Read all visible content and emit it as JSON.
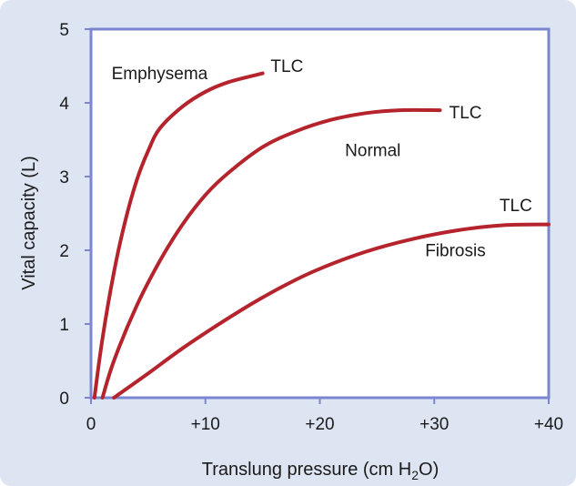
{
  "chart_data": {
    "type": "line",
    "xlabel_pre": "Translung pressure (cm H",
    "xlabel_sub": "2",
    "xlabel_post": "O)",
    "ylabel": "Vital capacity (L)",
    "xlim": [
      0,
      40
    ],
    "ylim": [
      0,
      5
    ],
    "x_ticks": [
      0,
      10,
      20,
      30,
      40
    ],
    "x_tick_labels": [
      "0",
      "+10",
      "+20",
      "+30",
      "+40"
    ],
    "y_ticks": [
      0,
      1,
      2,
      3,
      4,
      5
    ],
    "y_tick_labels": [
      "0",
      "1",
      "2",
      "3",
      "4",
      "5"
    ],
    "grid": false,
    "series": [
      {
        "name": "Emphysema",
        "end_label": "TLC",
        "points": [
          [
            0.3,
            0
          ],
          [
            1,
            0.8
          ],
          [
            2,
            1.7
          ],
          [
            3,
            2.4
          ],
          [
            4,
            2.95
          ],
          [
            5,
            3.35
          ],
          [
            6,
            3.65
          ],
          [
            8,
            3.95
          ],
          [
            10,
            4.15
          ],
          [
            12,
            4.28
          ],
          [
            15,
            4.4
          ]
        ]
      },
      {
        "name": "Normal",
        "end_label": "TLC",
        "points": [
          [
            1,
            0
          ],
          [
            2,
            0.5
          ],
          [
            4,
            1.25
          ],
          [
            6,
            1.85
          ],
          [
            8,
            2.35
          ],
          [
            10,
            2.75
          ],
          [
            12,
            3.05
          ],
          [
            15,
            3.4
          ],
          [
            18,
            3.62
          ],
          [
            21,
            3.77
          ],
          [
            24,
            3.86
          ],
          [
            27,
            3.9
          ],
          [
            30.5,
            3.9
          ]
        ]
      },
      {
        "name": "Fibrosis",
        "end_label": "TLC",
        "points": [
          [
            2,
            0
          ],
          [
            5,
            0.33
          ],
          [
            8,
            0.67
          ],
          [
            11,
            0.98
          ],
          [
            14,
            1.27
          ],
          [
            17,
            1.53
          ],
          [
            20,
            1.75
          ],
          [
            24,
            1.98
          ],
          [
            28,
            2.15
          ],
          [
            32,
            2.27
          ],
          [
            36,
            2.34
          ],
          [
            40,
            2.35
          ]
        ]
      }
    ],
    "curve_color": "#b5242c",
    "axis_color": "#7b86d0"
  }
}
